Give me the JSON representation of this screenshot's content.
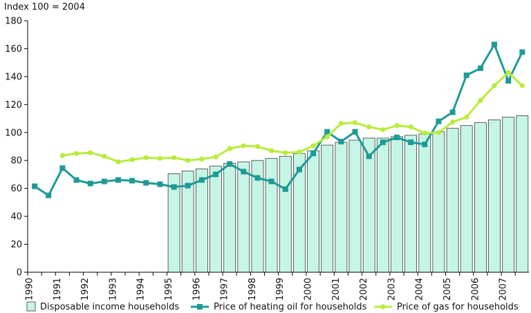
{
  "chart_data": {
    "type": "bar",
    "unit_label": "Index 100 = 2004",
    "ylim": [
      0,
      180
    ],
    "yticks": [
      0,
      20,
      40,
      60,
      80,
      100,
      120,
      140,
      160,
      180
    ],
    "xtick_labels": [
      "1990",
      "1991",
      "1992",
      "1993",
      "1994",
      "1995",
      "1996",
      "1997",
      "1998",
      "1999",
      "2000",
      "2001",
      "2002",
      "2003",
      "2004",
      "2005",
      "2006",
      "2007"
    ],
    "grid": false,
    "legend_position": "bottom",
    "colors": {
      "bars": "#c6f5e6",
      "bar_edge": "#3a3a3a",
      "heating_oil": "#1e9a96",
      "gas": "#b8ec3a",
      "axis": "#000000"
    },
    "bars": {
      "name": "Disposable income households",
      "x": [
        1995.0,
        1995.5,
        1996.0,
        1996.5,
        1997.0,
        1997.5,
        1998.0,
        1998.5,
        1999.0,
        1999.5,
        2000.0,
        2000.5,
        2001.0,
        2001.5,
        2002.0,
        2002.5,
        2003.0,
        2003.5,
        2004.0,
        2004.5,
        2005.0,
        2005.5,
        2006.0,
        2006.5,
        2007.0,
        2007.5
      ],
      "values": [
        70.5,
        72.5,
        74,
        76,
        78,
        79,
        80,
        81.5,
        83,
        85,
        87,
        91,
        93,
        94.5,
        96,
        96,
        97,
        98,
        99,
        100.5,
        103,
        105,
        107,
        109,
        111,
        112
      ]
    },
    "series": [
      {
        "name": "Price of heating oil for households",
        "marker": "square",
        "x": [
          1990.0,
          1990.5,
          1991.0,
          1991.5,
          1992.0,
          1992.5,
          1993.0,
          1993.5,
          1994.0,
          1994.5,
          1995.0,
          1995.5,
          1996.0,
          1996.5,
          1997.0,
          1997.5,
          1998.0,
          1998.5,
          1999.0,
          1999.5,
          2000.0,
          2000.5,
          2001.0,
          2001.5,
          2002.0,
          2002.5,
          2003.0,
          2003.5,
          2004.0,
          2004.5,
          2005.0,
          2005.5,
          2006.0,
          2006.5,
          2007.0,
          2007.5
        ],
        "values": [
          61.5,
          55,
          74.5,
          66,
          63.5,
          65,
          66,
          65.5,
          64,
          63,
          61,
          62,
          66,
          70,
          77.5,
          72,
          67.5,
          65,
          59.5,
          73.5,
          85,
          100.5,
          93.5,
          100.5,
          83,
          93,
          96.5,
          93,
          91.5,
          108,
          114.5,
          141,
          146,
          163,
          137,
          157.5
        ]
      },
      {
        "name": "Price of gas for households",
        "marker": "circle",
        "x": [
          1991.0,
          1991.5,
          1992.0,
          1992.5,
          1993.0,
          1993.5,
          1994.0,
          1994.5,
          1995.0,
          1995.5,
          1996.0,
          1996.5,
          1997.0,
          1997.5,
          1998.0,
          1998.5,
          1999.0,
          1999.5,
          2000.0,
          2000.5,
          2001.0,
          2001.5,
          2002.0,
          2002.5,
          2003.0,
          2003.5,
          2004.0,
          2004.5,
          2005.0,
          2005.5,
          2006.0,
          2006.5,
          2007.0,
          2007.5
        ],
        "values": [
          83.5,
          85,
          85.5,
          83,
          79,
          80.5,
          82,
          81.5,
          82,
          80,
          81,
          82.5,
          88.5,
          90.5,
          90,
          87,
          85.5,
          86,
          90.5,
          97,
          106.5,
          107,
          104,
          102,
          105,
          104,
          99.5,
          100,
          107.5,
          111,
          123,
          133.5,
          143,
          133.5
        ]
      }
    ]
  }
}
